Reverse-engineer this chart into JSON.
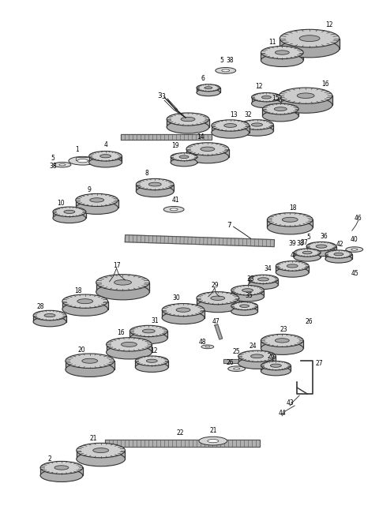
{
  "background_color": "#ffffff",
  "gear_fill_light": "#d8d8d8",
  "gear_fill_dark": "#b0b0b0",
  "gear_edge": "#333333",
  "shaft_color": "#aaaaaa",
  "shaft_edge": "#555555",
  "text_color": "#000000",
  "fig_width": 4.8,
  "fig_height": 6.55,
  "dpi": 100
}
